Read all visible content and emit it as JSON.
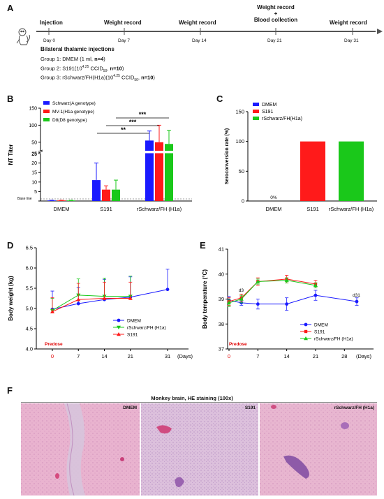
{
  "panel_labels": {
    "a": "A",
    "b": "B",
    "c": "C",
    "d": "D",
    "e": "E",
    "f": "F"
  },
  "timeline": {
    "start_label": "Injection",
    "events": [
      {
        "label": "Weight record",
        "day": "Day 7"
      },
      {
        "label": "Weight record",
        "day": "Day 14"
      },
      {
        "label": "Weight record\n+\nBlood collection",
        "day": "Day 21"
      },
      {
        "label": "Weight record",
        "day": "Day 31"
      }
    ],
    "day0": "Day 0",
    "heading": "Bilateral thalamic injections",
    "groups": [
      {
        "text": "Group 1: DMEM (1 ml, ",
        "bold": "n=4",
        "end": ")"
      },
      {
        "text": "Group 2: S191(10^4.25 CCID50, ",
        "bold": "n=10",
        "end": ")"
      },
      {
        "text": "Group 3: rSchwarz/FH(H1a)(10^4.25 CCID50, ",
        "bold": "n=10",
        "end": ")"
      }
    ]
  },
  "chart_data": [
    {
      "id": "B",
      "type": "bar",
      "ylabel": "NT Titer",
      "categories": [
        "DMEM",
        "S191",
        "rSchwarz/FH (H1a)"
      ],
      "series": [
        {
          "name": "Schwarz(A genotype)",
          "color": "#1a1aff",
          "values": [
            0.3,
            11,
            55
          ],
          "err": [
            0.1,
            9,
            28
          ]
        },
        {
          "name": "MV-1(H1a genotype)",
          "color": "#ff1a1a",
          "values": [
            0.3,
            6,
            50
          ],
          "err": [
            0.1,
            2,
            50
          ]
        },
        {
          "name": "D8(D8 genotype)",
          "color": "#1ac81a",
          "values": [
            0.3,
            6,
            45
          ],
          "err": [
            0.1,
            5,
            40
          ]
        }
      ],
      "yticks_lower": [
        0,
        5,
        10,
        15,
        20,
        25
      ],
      "yticks_upper": [
        50,
        100,
        150
      ],
      "baseline_label": "Base line",
      "significance": [
        "**",
        "***",
        "***"
      ]
    },
    {
      "id": "C",
      "type": "bar",
      "ylabel": "Seroconversion rate (%)",
      "categories": [
        "DMEM",
        "S191",
        "rSchwarz/FH (H1a)"
      ],
      "values": [
        0,
        100,
        100
      ],
      "colors": [
        "#1a1aff",
        "#ff1a1a",
        "#1ac81a"
      ],
      "series_names": [
        "DMEM",
        "S191",
        "rSchwarz/FH(H1a)"
      ],
      "annotation": "0%",
      "ylim": [
        0,
        150
      ],
      "yticks": [
        0,
        50,
        100,
        150
      ]
    },
    {
      "id": "D",
      "type": "line",
      "ylabel": "Body weight (kg)",
      "xlabel": "(Days)",
      "x": [
        0,
        7,
        14,
        21,
        31
      ],
      "ylim": [
        4.0,
        6.5
      ],
      "yticks": [
        4.0,
        4.5,
        5.0,
        5.5,
        6.0,
        6.5
      ],
      "series": [
        {
          "name": "DMEM",
          "color": "#1a1aff",
          "marker": "circle",
          "x": [
            0,
            7,
            14,
            21,
            31
          ],
          "y": [
            4.98,
            5.12,
            5.22,
            5.28,
            5.47
          ],
          "err": [
            0.45,
            0.4,
            0.5,
            0.5,
            0.5
          ]
        },
        {
          "name": "rSchwarz/FH (H1a)",
          "color": "#1ac81a",
          "marker": "tri-down",
          "x": [
            0,
            7,
            14,
            21
          ],
          "y": [
            4.95,
            5.33,
            5.3,
            5.3
          ],
          "err": [
            0.3,
            0.4,
            0.45,
            0.5
          ]
        },
        {
          "name": "S191",
          "color": "#ff1a1a",
          "marker": "tri-up",
          "x": [
            0,
            7,
            14,
            21
          ],
          "y": [
            4.92,
            5.22,
            5.25,
            5.25
          ],
          "err": [
            0.35,
            0.4,
            0.4,
            0.4
          ]
        }
      ],
      "predose": "Predose"
    },
    {
      "id": "E",
      "type": "line",
      "ylabel": "Body temperature (°C)",
      "xlabel": "(Days)",
      "xticks": [
        0,
        7,
        14,
        21,
        28
      ],
      "ylim": [
        37,
        41
      ],
      "yticks": [
        37,
        38,
        39,
        40,
        41
      ],
      "series": [
        {
          "name": "DMEM",
          "color": "#1a1aff",
          "marker": "circle",
          "x": [
            0,
            3,
            7,
            14,
            21,
            31
          ],
          "y": [
            38.95,
            38.85,
            38.8,
            38.8,
            39.15,
            38.9
          ],
          "err": [
            0.15,
            0.1,
            0.2,
            0.25,
            0.2,
            0.15
          ]
        },
        {
          "name": "S191",
          "color": "#ff1a1a",
          "marker": "square",
          "x": [
            0,
            3,
            7,
            14,
            21
          ],
          "y": [
            38.9,
            39.05,
            39.7,
            39.8,
            39.6
          ],
          "err": [
            0.15,
            0.15,
            0.15,
            0.15,
            0.15
          ]
        },
        {
          "name": "rSchwarz/FH (H1a)",
          "color": "#1ac81a",
          "marker": "tri-up",
          "x": [
            0,
            3,
            7,
            14,
            21
          ],
          "y": [
            38.85,
            39.0,
            39.7,
            39.75,
            39.55
          ],
          "err": [
            0.15,
            0.15,
            0.1,
            0.1,
            0.1
          ]
        }
      ],
      "annotations": [
        "d3",
        "d31"
      ],
      "predose": "Predose"
    }
  ],
  "panel_f": {
    "title": "Monkey brain, HE staining (100x)",
    "images": [
      {
        "label": "DMEM"
      },
      {
        "label": "S191"
      },
      {
        "label": "rSchwarz/FH (H1a)"
      }
    ]
  }
}
